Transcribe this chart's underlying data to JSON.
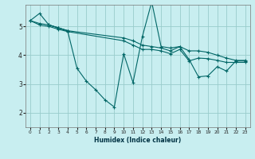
{
  "title": "",
  "xlabel": "Humidex (Indice chaleur)",
  "background_color": "#c8eef0",
  "grid_color": "#99cccc",
  "line_color": "#006666",
  "xlim": [
    -0.5,
    23.5
  ],
  "ylim": [
    1.5,
    5.75
  ],
  "yticks": [
    2,
    3,
    4,
    5
  ],
  "xticks": [
    0,
    1,
    2,
    3,
    4,
    5,
    6,
    7,
    8,
    9,
    10,
    11,
    12,
    13,
    14,
    15,
    16,
    17,
    18,
    19,
    20,
    21,
    22,
    23
  ],
  "series": [
    {
      "x": [
        0,
        1,
        2,
        3,
        4
      ],
      "y": [
        5.2,
        5.45,
        5.05,
        4.95,
        4.85
      ]
    },
    {
      "x": [
        2,
        3,
        4,
        5,
        6,
        7,
        8,
        9,
        10,
        11,
        12,
        13,
        14,
        15,
        16,
        17,
        18,
        19,
        20,
        21,
        22,
        23
      ],
      "y": [
        5.05,
        4.95,
        4.85,
        3.55,
        3.1,
        2.8,
        2.45,
        2.2,
        4.05,
        3.05,
        4.65,
        5.85,
        4.3,
        4.25,
        4.3,
        3.85,
        3.25,
        3.28,
        3.6,
        3.45,
        3.8,
        3.8
      ]
    },
    {
      "x": [
        0,
        1,
        2,
        3,
        4,
        10,
        11,
        12,
        13,
        14,
        15,
        16,
        17,
        18,
        19,
        20,
        21,
        22,
        23
      ],
      "y": [
        5.2,
        5.1,
        5.05,
        4.95,
        4.85,
        4.6,
        4.5,
        4.35,
        4.3,
        4.25,
        4.15,
        4.3,
        4.15,
        4.15,
        4.1,
        4.0,
        3.9,
        3.82,
        3.82
      ]
    },
    {
      "x": [
        0,
        1,
        2,
        3,
        4,
        10,
        11,
        12,
        13,
        14,
        15,
        16,
        17,
        18,
        19,
        20,
        21,
        22,
        23
      ],
      "y": [
        5.2,
        5.05,
        5.0,
        4.9,
        4.82,
        4.5,
        4.35,
        4.2,
        4.2,
        4.15,
        4.05,
        4.2,
        3.8,
        3.9,
        3.88,
        3.82,
        3.75,
        3.75,
        3.75
      ]
    }
  ]
}
